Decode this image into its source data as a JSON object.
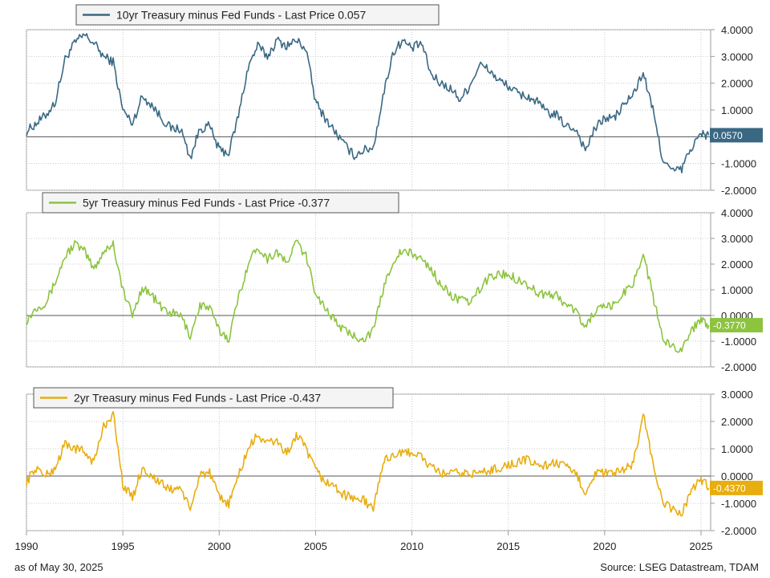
{
  "footer": {
    "as_of": "as of May 30, 2025",
    "source": "Source: LSEG Datastream, TDAM"
  },
  "chart_data": [
    {
      "type": "line",
      "series": [
        {
          "name": "10yr Treasury minus Fed Funds - Last Price 0.057",
          "color": "#3a6883"
        }
      ],
      "last_price_label": "0.0570",
      "ylim": [
        -2,
        4
      ],
      "yticks": [
        "4.0000",
        "3.0000",
        "2.0000",
        "1.0000",
        "",
        "-1.0000",
        "-2.0000"
      ],
      "grid": true,
      "zero_line": true,
      "x": [
        1990,
        1990.5,
        1991,
        1991.5,
        1992,
        1992.5,
        1993,
        1993.5,
        1994,
        1994.5,
        1995,
        1995.5,
        1996,
        1996.5,
        1997,
        1997.5,
        1998,
        1998.5,
        1999,
        1999.5,
        2000,
        2000.5,
        2001,
        2001.5,
        2002,
        2002.5,
        2003,
        2003.5,
        2004,
        2004.5,
        2005,
        2005.5,
        2006,
        2006.5,
        2007,
        2007.5,
        2008,
        2008.5,
        2009,
        2009.5,
        2010,
        2010.5,
        2011,
        2011.5,
        2012,
        2012.5,
        2013,
        2013.5,
        2014,
        2014.5,
        2015,
        2015.5,
        2016,
        2016.5,
        2017,
        2017.5,
        2018,
        2018.5,
        2019,
        2019.5,
        2020,
        2020.5,
        2021,
        2021.5,
        2022,
        2022.5,
        2023,
        2023.5,
        2024,
        2024.5,
        2025,
        2025.4
      ],
      "y": [
        0.2,
        0.5,
        0.8,
        1.3,
        2.9,
        3.5,
        3.8,
        3.5,
        3.0,
        2.8,
        1.0,
        0.5,
        1.5,
        1.2,
        0.7,
        0.3,
        0.3,
        -0.8,
        0.3,
        0.4,
        -0.5,
        -0.6,
        0.8,
        2.6,
        3.4,
        3.0,
        3.6,
        3.4,
        3.6,
        3.3,
        1.3,
        0.7,
        0.2,
        -0.3,
        -0.7,
        -0.5,
        -0.4,
        1.5,
        3.1,
        3.6,
        3.3,
        3.5,
        2.3,
        2.0,
        1.8,
        1.4,
        1.9,
        2.7,
        2.5,
        2.1,
        1.9,
        1.6,
        1.5,
        1.3,
        0.9,
        0.8,
        0.4,
        0.3,
        -0.5,
        0.3,
        0.7,
        0.7,
        1.2,
        1.6,
        2.4,
        1.0,
        -0.8,
        -1.3,
        -1.2,
        -0.4,
        0.1,
        0.057
      ]
    },
    {
      "type": "line",
      "series": [
        {
          "name": "5yr Treasury minus Fed Funds - Last Price -0.377",
          "color": "#8cc43f"
        }
      ],
      "last_price_label": "-0.3770",
      "ylim": [
        -2,
        4
      ],
      "yticks": [
        "4.0000",
        "3.0000",
        "2.0000",
        "1.0000",
        "0.0000",
        "-1.0000",
        "-2.0000"
      ],
      "grid": true,
      "zero_line": true,
      "x": [
        1990,
        1990.5,
        1991,
        1991.5,
        1992,
        1992.5,
        1993,
        1993.5,
        1994,
        1994.5,
        1995,
        1995.5,
        1996,
        1996.5,
        1997,
        1997.5,
        1998,
        1998.5,
        1999,
        1999.5,
        2000,
        2000.5,
        2001,
        2001.5,
        2002,
        2002.5,
        2003,
        2003.5,
        2004,
        2004.5,
        2005,
        2005.5,
        2006,
        2006.5,
        2007,
        2007.5,
        2008,
        2008.5,
        2009,
        2009.5,
        2010,
        2010.5,
        2011,
        2011.5,
        2012,
        2012.5,
        2013,
        2013.5,
        2014,
        2014.5,
        2015,
        2015.5,
        2016,
        2016.5,
        2017,
        2017.5,
        2018,
        2018.5,
        2019,
        2019.5,
        2020,
        2020.5,
        2021,
        2021.5,
        2022,
        2022.5,
        2023,
        2023.5,
        2024,
        2024.5,
        2025,
        2025.4
      ],
      "y": [
        -0.2,
        0.3,
        0.5,
        1.3,
        2.3,
        2.8,
        2.5,
        1.8,
        2.5,
        2.8,
        1.0,
        0.0,
        1.1,
        0.8,
        0.3,
        0.1,
        0.0,
        -0.8,
        0.4,
        0.3,
        -0.6,
        -0.9,
        0.7,
        2.0,
        2.7,
        2.2,
        2.5,
        2.0,
        2.9,
        2.3,
        0.9,
        0.3,
        -0.2,
        -0.6,
        -0.8,
        -0.9,
        -0.6,
        1.0,
        2.1,
        2.5,
        2.4,
        2.2,
        1.8,
        1.2,
        0.8,
        0.6,
        0.5,
        1.0,
        1.5,
        1.6,
        1.6,
        1.4,
        1.2,
        0.9,
        0.8,
        0.8,
        0.4,
        0.2,
        -0.5,
        0.2,
        0.3,
        0.4,
        0.9,
        1.3,
        2.4,
        0.8,
        -0.9,
        -1.2,
        -1.3,
        -0.6,
        -0.1,
        -0.377
      ]
    },
    {
      "type": "line",
      "series": [
        {
          "name": "2yr Treasury minus Fed Funds - Last Price -0.437",
          "color": "#e8ad0e"
        }
      ],
      "last_price_label": "-0.4370",
      "ylim": [
        -2,
        3
      ],
      "yticks": [
        "3.0000",
        "2.0000",
        "1.0000",
        "0.0000",
        "-1.0000",
        "-2.0000"
      ],
      "grid": true,
      "zero_line": true,
      "x": [
        1990,
        1990.5,
        1991,
        1991.5,
        1992,
        1992.5,
        1993,
        1993.5,
        1994,
        1994.5,
        1995,
        1995.5,
        1996,
        1996.5,
        1997,
        1997.5,
        1998,
        1998.5,
        1999,
        1999.5,
        2000,
        2000.5,
        2001,
        2001.5,
        2002,
        2002.5,
        2003,
        2003.5,
        2004,
        2004.5,
        2005,
        2005.5,
        2006,
        2006.5,
        2007,
        2007.5,
        2008,
        2008.5,
        2009,
        2009.5,
        2010,
        2010.5,
        2011,
        2011.5,
        2012,
        2012.5,
        2013,
        2013.5,
        2014,
        2014.5,
        2015,
        2015.5,
        2016,
        2016.5,
        2017,
        2017.5,
        2018,
        2018.5,
        2019,
        2019.5,
        2020,
        2020.5,
        2021,
        2021.5,
        2022,
        2022.5,
        2023,
        2023.5,
        2024,
        2024.5,
        2025,
        2025.4
      ],
      "y": [
        -0.2,
        0.3,
        0.0,
        0.3,
        1.2,
        1.0,
        0.9,
        0.5,
        1.8,
        2.3,
        -0.3,
        -0.8,
        0.3,
        0.0,
        -0.3,
        -0.5,
        -0.4,
        -1.3,
        0.1,
        0.1,
        -0.8,
        -1.0,
        0.0,
        1.0,
        1.5,
        1.2,
        1.3,
        0.8,
        1.5,
        1.0,
        0.2,
        -0.2,
        -0.4,
        -0.7,
        -0.8,
        -0.9,
        -1.2,
        0.5,
        0.8,
        0.8,
        0.9,
        0.7,
        0.3,
        0.1,
        0.1,
        0.1,
        0.1,
        0.1,
        0.2,
        0.3,
        0.4,
        0.5,
        0.6,
        0.4,
        0.4,
        0.5,
        0.3,
        0.1,
        -0.6,
        0.1,
        0.1,
        0.1,
        0.2,
        0.5,
        2.3,
        0.5,
        -1.0,
        -1.2,
        -1.4,
        -0.5,
        -0.1,
        -0.437
      ]
    }
  ],
  "x_axis": {
    "xlim": [
      1990,
      2025.5
    ],
    "ticks": [
      1990,
      1995,
      2000,
      2005,
      2010,
      2015,
      2020,
      2025
    ],
    "tick_labels": [
      "1990",
      "1995",
      "2000",
      "2005",
      "2010",
      "2015",
      "2020",
      "2025"
    ]
  }
}
